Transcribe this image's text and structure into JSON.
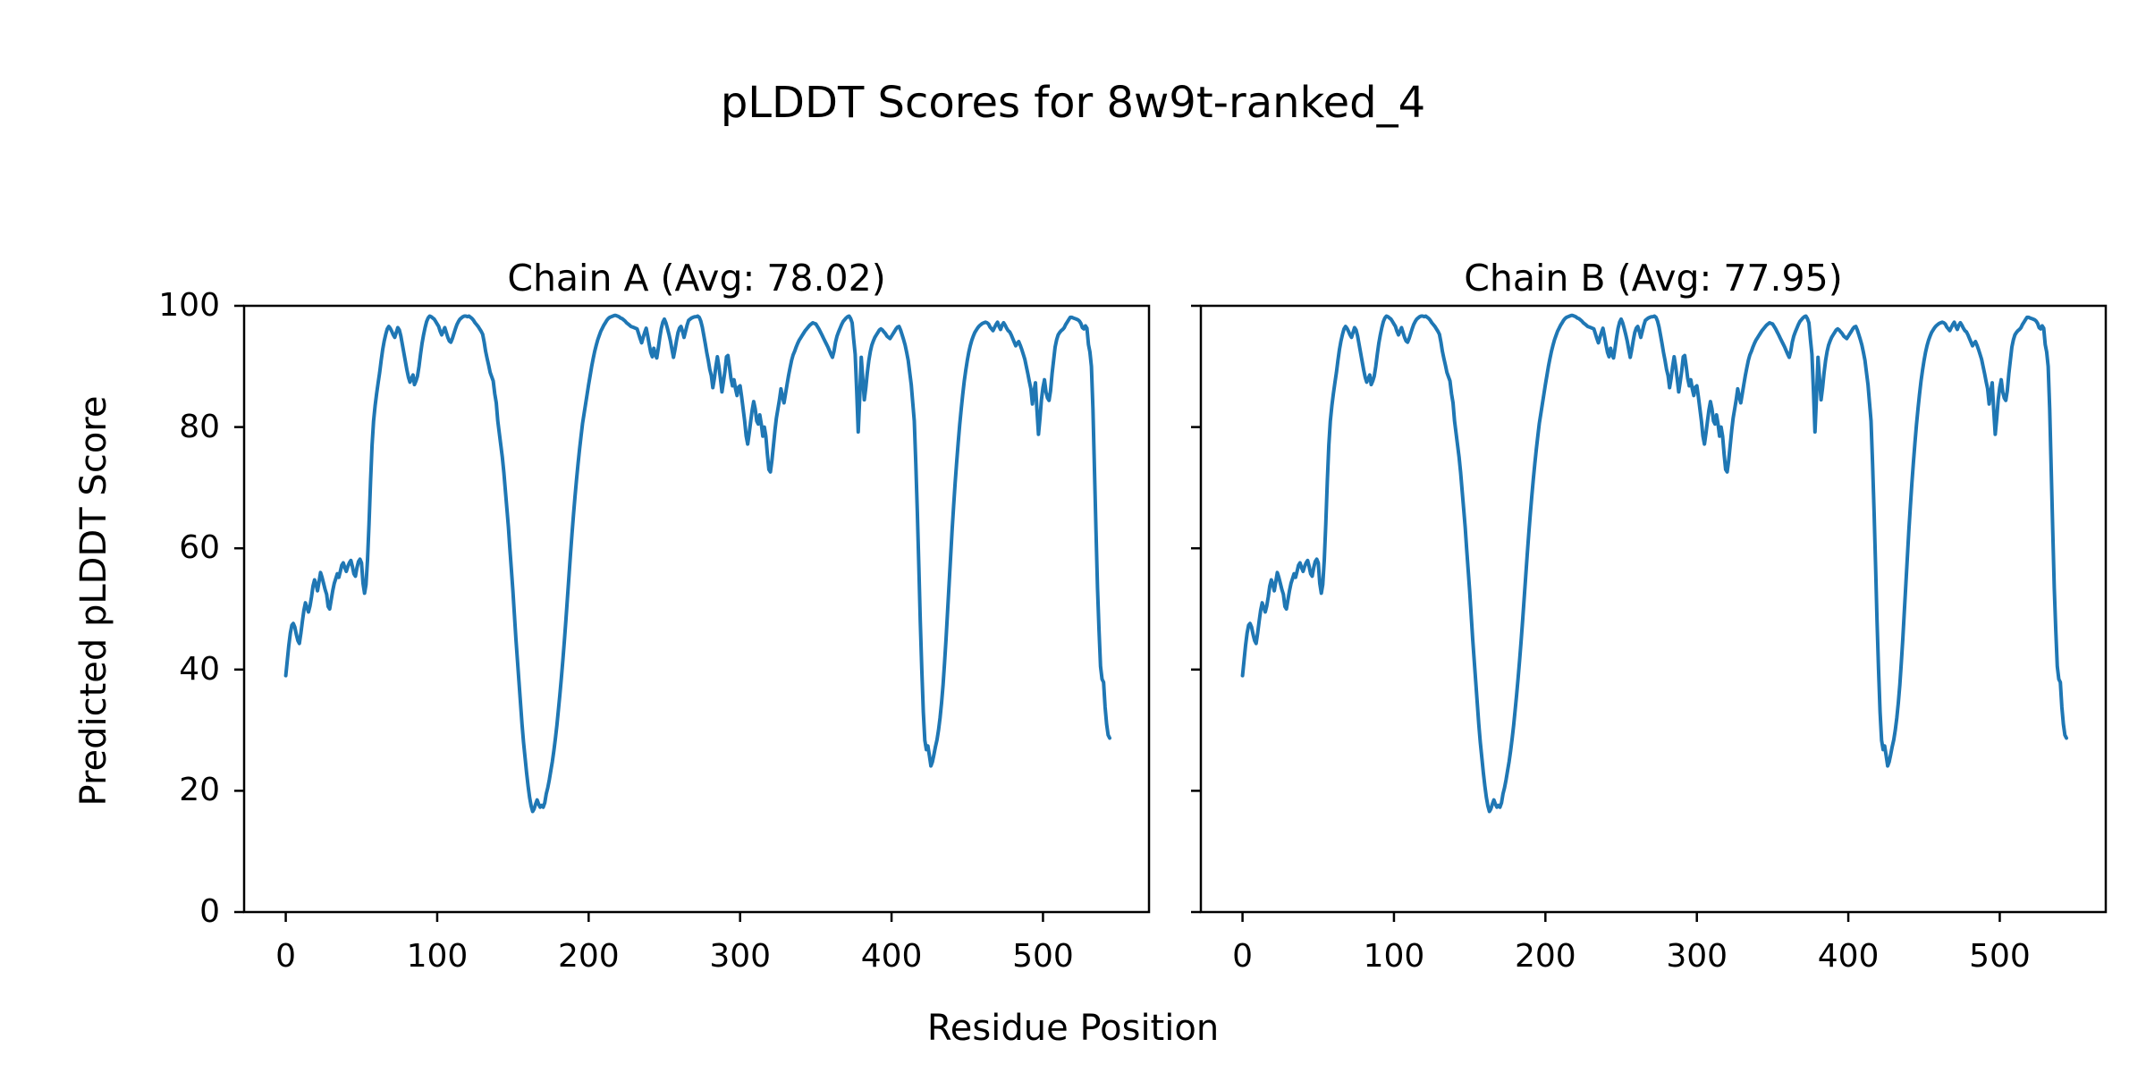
{
  "figure": {
    "title": "pLDDT Scores for 8w9t-ranked_4",
    "xlabel": "Residue Position",
    "ylabel": "Predicted pLDDT Score",
    "background_color": "#ffffff",
    "text_color": "#000000",
    "spine_color": "#000000",
    "line_color": "#1f77b4"
  },
  "chart_data": [
    {
      "type": "line",
      "chain": "A",
      "title": "Chain A (Avg: 78.02)",
      "avg": 78.02,
      "xlabel": "Residue Position",
      "ylabel": "Predicted pLDDT Score",
      "xlim": [
        -27.5,
        570
      ],
      "ylim": [
        0,
        100
      ],
      "xticks": [
        0,
        100,
        200,
        300,
        400,
        500
      ],
      "yticks": [
        0,
        20,
        40,
        60,
        80,
        100
      ],
      "show_ytick_labels": true,
      "grid": false,
      "legend": "none",
      "series": [
        {
          "name": "pLDDT",
          "color": "#1f77b4",
          "x_start": 0,
          "x_step": 1,
          "values_key": "plddt_trace"
        }
      ]
    },
    {
      "type": "line",
      "chain": "B",
      "title": "Chain B (Avg: 77.95)",
      "avg": 77.95,
      "xlabel": "Residue Position",
      "ylabel": "",
      "xlim": [
        -27.5,
        570
      ],
      "ylim": [
        0,
        100
      ],
      "xticks": [
        0,
        100,
        200,
        300,
        400,
        500
      ],
      "yticks": [
        0,
        20,
        40,
        60,
        80,
        100
      ],
      "show_ytick_labels": false,
      "grid": false,
      "legend": "none",
      "series": [
        {
          "name": "pLDDT",
          "color": "#1f77b4",
          "x_start": 0,
          "x_step": 1,
          "values_key": "plddt_trace"
        }
      ]
    }
  ],
  "plddt_trace": [
    39,
    41.5,
    44,
    46,
    47.3,
    47.6,
    47,
    45.8,
    44.8,
    44.3,
    46,
    48,
    49.8,
    51,
    50.2,
    49.5,
    50.5,
    52,
    53.8,
    54.8,
    54,
    53,
    54.5,
    56,
    55.2,
    54.2,
    53.2,
    52.4,
    50.4,
    50,
    51.5,
    53,
    54.2,
    55,
    55.8,
    55.2,
    56.2,
    57.2,
    57.6,
    56.8,
    56.2,
    57,
    57.6,
    58,
    57,
    55.8,
    55.4,
    56.8,
    57.8,
    58.2,
    57.6,
    54.2,
    52.6,
    54,
    58,
    64,
    71,
    77,
    81,
    83.5,
    85.5,
    87.3,
    89,
    91,
    92.8,
    94.2,
    95.3,
    96.2,
    96.6,
    96.3,
    95.8,
    95.2,
    94.8,
    95.6,
    96.4,
    96,
    95,
    93.6,
    92.2,
    90.8,
    89.4,
    88.2,
    87.4,
    88,
    88.6,
    87,
    87.6,
    88.4,
    90,
    92,
    93.8,
    95.2,
    96.4,
    97.4,
    98,
    98.3,
    98.2,
    98,
    97.8,
    97.4,
    97,
    96.6,
    95.8,
    95.2,
    95.8,
    96.4,
    95.6,
    94.8,
    94.2,
    94,
    94.6,
    95.4,
    96.2,
    96.9,
    97.4,
    97.8,
    98,
    98.2,
    98.3,
    98.3,
    98.2,
    98.3,
    98.1,
    97.9,
    97.6,
    97.2,
    96.9,
    96.6,
    96.2,
    95.8,
    95.3,
    94,
    92.5,
    91.3,
    90.2,
    89,
    88.3,
    87.6,
    85.5,
    84,
    81,
    79,
    77,
    75,
    72.5,
    69.5,
    66.5,
    63.5,
    60,
    56.5,
    53,
    49,
    45,
    41.5,
    38,
    34.5,
    31,
    28,
    25.5,
    23,
    20.8,
    18.9,
    17.5,
    16.6,
    17,
    17.8,
    18.5,
    17.8,
    17.3,
    17.6,
    17.3,
    18,
    19.5,
    20.5,
    21.8,
    23.3,
    24.8,
    26.6,
    28.6,
    30.8,
    33.2,
    35.8,
    38.6,
    41.6,
    44.8,
    48.2,
    51.8,
    55.4,
    59,
    62.4,
    65.6,
    68.6,
    71.4,
    74,
    76.4,
    78.6,
    80.6,
    82.2,
    83.8,
    85.4,
    87,
    88.5,
    90,
    91.3,
    92.5,
    93.5,
    94.4,
    95.1,
    95.8,
    96.3,
    96.8,
    97.2,
    97.6,
    97.9,
    98.1,
    98.2,
    98.3,
    98.4,
    98.4,
    98.3,
    98.2,
    98,
    97.9,
    97.7,
    97.5,
    97.2,
    97,
    96.8,
    96.6,
    96.5,
    96.4,
    96.3,
    96.2,
    95.4,
    94.6,
    93.9,
    94.8,
    95.6,
    96.3,
    95,
    93.6,
    92.3,
    91.6,
    93,
    92,
    91.4,
    93,
    94.8,
    96.3,
    97.3,
    97.8,
    97.2,
    96.3,
    95.3,
    94.2,
    92.8,
    91.5,
    92.8,
    94.3,
    95.6,
    96.3,
    96.6,
    95.8,
    94.8,
    95.8,
    96.8,
    97.6,
    97.8,
    98,
    98.1,
    98.2,
    98.2,
    98.3,
    98.1,
    97.5,
    96.5,
    95.2,
    93.8,
    92.3,
    91,
    89.5,
    88.5,
    86.5,
    88,
    90,
    91.6,
    90,
    88,
    85.8,
    87.5,
    89.3,
    91.6,
    91.8,
    90,
    88,
    86.8,
    87.8,
    86.3,
    85.2,
    86.6,
    86.8,
    85,
    83,
    81,
    78.5,
    77.2,
    79,
    81,
    82.8,
    84.2,
    83,
    81,
    80.5,
    82,
    80.5,
    78.5,
    80,
    78.5,
    75.5,
    73,
    72.6,
    74.5,
    77,
    79.5,
    81.5,
    83,
    84.5,
    86.3,
    85,
    84,
    85.5,
    87,
    88.5,
    89.8,
    91,
    91.9,
    92.5,
    93.2,
    93.8,
    94.3,
    94.7,
    95.1,
    95.5,
    95.9,
    96.2,
    96.5,
    96.8,
    97,
    97.2,
    97.1,
    97,
    96.6,
    96.2,
    95.7,
    95.2,
    94.7,
    94.2,
    93.7,
    93.2,
    92.6,
    92,
    91.5,
    92.5,
    94,
    95,
    95.7,
    96.3,
    96.9,
    97.4,
    97.7,
    98,
    98.2,
    98.3,
    97.9,
    97.2,
    94.5,
    92,
    86,
    79.2,
    85,
    91.5,
    88,
    84.5,
    86.5,
    89,
    91,
    92.5,
    93.5,
    94.2,
    94.8,
    95.2,
    95.6,
    96,
    96.2,
    96,
    95.7,
    95.4,
    95,
    94.8,
    94.6,
    95,
    95.4,
    95.8,
    96.2,
    96.5,
    96.6,
    96,
    95.2,
    94.4,
    93.5,
    92.3,
    91,
    89,
    87,
    84,
    81,
    74,
    66,
    57,
    48,
    40,
    33,
    28.3,
    26.8,
    27.4,
    25.8,
    24.1,
    24.8,
    26,
    27.3,
    28.4,
    30,
    32,
    34.5,
    37.5,
    41,
    45,
    49.5,
    54,
    58.5,
    63,
    67,
    70.8,
    74.2,
    77.4,
    80.4,
    83,
    85.4,
    87.6,
    89.4,
    91,
    92.3,
    93.4,
    94.3,
    95,
    95.6,
    96,
    96.4,
    96.7,
    96.9,
    97.1,
    97.2,
    97.3,
    97.2,
    97,
    96.5,
    96.2,
    95.9,
    96.4,
    96.9,
    97.3,
    96.6,
    96.1,
    96.8,
    97.2,
    96.8,
    96.3,
    95.9,
    95.7,
    95.2,
    94.6,
    94,
    93.4,
    93.8,
    94.1,
    93.5,
    92.8,
    92,
    91.2,
    90,
    88.8,
    87.5,
    86.3,
    83.8,
    85.8,
    87.3,
    82.8,
    78.8,
    81.5,
    84.5,
    86.5,
    87.8,
    85.8,
    84.8,
    84.4,
    86,
    88.8,
    91,
    93.2,
    94.4,
    95.2,
    95.6,
    95.9,
    96.1,
    96.4,
    96.9,
    97.3,
    97.7,
    98.1,
    98.1,
    98,
    97.9,
    97.8,
    97.7,
    97.5,
    97.1,
    96.4,
    96.2,
    96.7,
    96.3,
    93.6,
    92.4,
    90,
    83,
    73,
    63,
    53.5,
    46.5,
    40.5,
    38.4,
    37.9,
    33.8,
    31,
    29.2,
    28.7
  ]
}
